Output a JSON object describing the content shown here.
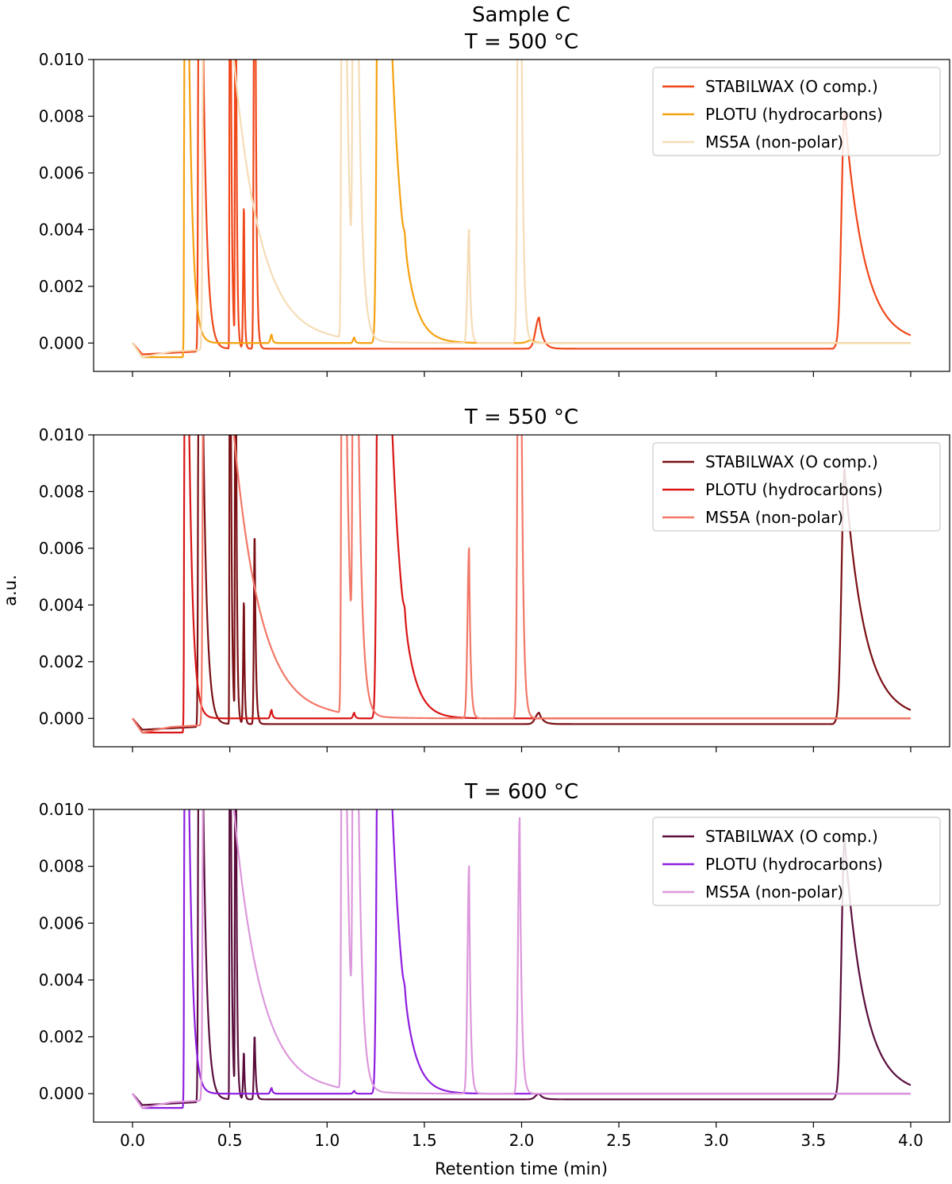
{
  "figure": {
    "title": "Sample C",
    "ylabel": "a.u.",
    "xlabel": "Retention time (min)"
  },
  "chart_data": [
    {
      "type": "line",
      "title": "T = 500 °C",
      "xlabel": "Retention time (min)",
      "ylabel": "a.u.",
      "xlim": [
        -0.2,
        4.2
      ],
      "ylim": [
        -0.001,
        0.01
      ],
      "xticks": [
        "0.0",
        "0.5",
        "1.0",
        "1.5",
        "2.0",
        "2.5",
        "3.0",
        "3.5",
        "4.0"
      ],
      "yticks": [
        "0.000",
        "0.002",
        "0.004",
        "0.006",
        "0.008",
        "0.010"
      ],
      "legend_position": "top-right",
      "grid": false,
      "series": [
        {
          "name": "STABILWAX (O comp.)",
          "color": "#f0471a",
          "baseline": [
            [
              0.0,
              0.0
            ],
            [
              0.05,
              -0.0004
            ],
            [
              0.33,
              -0.0003
            ],
            [
              0.5,
              -0.0002
            ],
            [
              0.6,
              -0.0002
            ],
            [
              0.67,
              -0.0002
            ],
            [
              1.0,
              -0.0002
            ],
            [
              1.5,
              -0.0002
            ],
            [
              2.05,
              -0.0002
            ],
            [
              2.1,
              -0.0002
            ],
            [
              2.5,
              -0.0002
            ],
            [
              3.0,
              -0.0002
            ],
            [
              3.6,
              -0.0002
            ],
            [
              3.65,
              0.0
            ],
            [
              4.0,
              0.0
            ]
          ],
          "peaks": [
            [
              0.343,
              0.03,
              0.004,
              0.02
            ],
            [
              0.5,
              0.03,
              0.0015,
              0.006
            ],
            [
              0.528,
              0.03,
              0.0015,
              0.005
            ],
            [
              0.573,
              0.0052,
              0.004,
              0.004
            ],
            [
              0.628,
              0.025,
              0.004,
              0.006
            ],
            [
              2.09,
              0.0011,
              0.018,
              0.02
            ],
            [
              3.66,
              0.0082,
              0.015,
              0.1
            ]
          ]
        },
        {
          "name": "PLOTU (hydrocarbons)",
          "color": "#f5a10f",
          "baseline": [
            [
              0.0,
              0.0
            ],
            [
              0.05,
              -0.0005
            ],
            [
              0.2,
              -0.0005
            ],
            [
              0.27,
              -0.0005
            ],
            [
              0.3,
              0.0
            ],
            [
              0.4,
              0.0
            ],
            [
              1.0,
              0.0
            ],
            [
              1.3,
              0.0
            ],
            [
              1.5,
              0.0
            ],
            [
              2.0,
              0.0
            ],
            [
              4.0,
              0.0
            ]
          ],
          "peaks": [
            [
              0.27,
              0.03,
              0.003,
              0.02
            ],
            [
              0.715,
              0.0003,
              0.006,
              0.006
            ],
            [
              1.14,
              0.0002,
              0.006,
              0.006
            ],
            [
              1.27,
              0.03,
              0.01,
              0.06
            ],
            [
              1.4,
              0.0004,
              0.006,
              0.006
            ],
            [
              2.05,
              0.0001,
              0.02,
              0.02
            ]
          ]
        },
        {
          "name": "MS5A (non-polar)",
          "color": "#f5dcb6",
          "baseline": [
            [
              0.0,
              0.0
            ],
            [
              0.05,
              -0.0005
            ],
            [
              0.2,
              -0.0003
            ],
            [
              1.0,
              0.0
            ],
            [
              2.0,
              0.0
            ],
            [
              4.0,
              0.0
            ]
          ],
          "peaks": [
            [
              0.37,
              0.03,
              0.006,
              0.14
            ],
            [
              1.08,
              0.03,
              0.005,
              0.02
            ],
            [
              1.14,
              0.03,
              0.006,
              0.02
            ],
            [
              1.73,
              0.004,
              0.008,
              0.008
            ],
            [
              1.99,
              0.03,
              0.008,
              0.01
            ]
          ]
        }
      ]
    },
    {
      "type": "line",
      "title": "T = 550 °C",
      "xlabel": "Retention time (min)",
      "ylabel": "a.u.",
      "xlim": [
        -0.2,
        4.2
      ],
      "ylim": [
        -0.001,
        0.01
      ],
      "xticks": [
        "0.0",
        "0.5",
        "1.0",
        "1.5",
        "2.0",
        "2.5",
        "3.0",
        "3.5",
        "4.0"
      ],
      "yticks": [
        "0.000",
        "0.002",
        "0.004",
        "0.006",
        "0.008",
        "0.010"
      ],
      "legend_position": "top-right",
      "grid": false,
      "series": [
        {
          "name": "STABILWAX (O comp.)",
          "color": "#7a0f14",
          "baseline": [
            [
              0.0,
              0.0
            ],
            [
              0.05,
              -0.0004
            ],
            [
              0.33,
              -0.0003
            ],
            [
              0.5,
              -0.0002
            ],
            [
              0.67,
              -0.0002
            ],
            [
              1.0,
              -0.0002
            ],
            [
              2.0,
              -0.0002
            ],
            [
              2.5,
              -0.0002
            ],
            [
              3.0,
              -0.0002
            ],
            [
              3.6,
              -0.0002
            ],
            [
              3.65,
              0.0
            ],
            [
              4.0,
              0.0
            ]
          ],
          "peaks": [
            [
              0.343,
              0.03,
              0.004,
              0.02
            ],
            [
              0.5,
              0.03,
              0.0015,
              0.006
            ],
            [
              0.528,
              0.03,
              0.0015,
              0.005
            ],
            [
              0.573,
              0.0045,
              0.004,
              0.004
            ],
            [
              0.628,
              0.0069,
              0.004,
              0.006
            ],
            [
              2.09,
              0.0004,
              0.018,
              0.02
            ],
            [
              3.66,
              0.0088,
              0.015,
              0.1
            ]
          ]
        },
        {
          "name": "PLOTU (hydrocarbons)",
          "color": "#d91515",
          "baseline": [
            [
              0.0,
              0.0
            ],
            [
              0.05,
              -0.0005
            ],
            [
              0.2,
              -0.0005
            ],
            [
              0.27,
              -0.0005
            ],
            [
              0.3,
              0.0
            ],
            [
              1.0,
              0.0
            ],
            [
              2.0,
              0.0
            ],
            [
              4.0,
              0.0
            ]
          ],
          "peaks": [
            [
              0.27,
              0.03,
              0.003,
              0.02
            ],
            [
              0.715,
              0.0003,
              0.006,
              0.006
            ],
            [
              1.14,
              0.0002,
              0.006,
              0.006
            ],
            [
              1.27,
              0.03,
              0.01,
              0.06
            ],
            [
              1.4,
              0.0004,
              0.006,
              0.006
            ]
          ]
        },
        {
          "name": "MS5A (non-polar)",
          "color": "#f27868",
          "baseline": [
            [
              0.0,
              0.0
            ],
            [
              0.05,
              -0.0005
            ],
            [
              0.2,
              -0.0003
            ],
            [
              1.0,
              0.0
            ],
            [
              2.0,
              0.0
            ],
            [
              4.0,
              0.0
            ]
          ],
          "peaks": [
            [
              0.37,
              0.03,
              0.006,
              0.14
            ],
            [
              1.08,
              0.03,
              0.005,
              0.02
            ],
            [
              1.14,
              0.03,
              0.006,
              0.02
            ],
            [
              1.73,
              0.006,
              0.008,
              0.008
            ],
            [
              1.99,
              0.03,
              0.008,
              0.01
            ]
          ]
        }
      ]
    },
    {
      "type": "line",
      "title": "T = 600 °C",
      "xlabel": "Retention time (min)",
      "ylabel": "a.u.",
      "xlim": [
        -0.2,
        4.2
      ],
      "ylim": [
        -0.001,
        0.01
      ],
      "xticks": [
        "0.0",
        "0.5",
        "1.0",
        "1.5",
        "2.0",
        "2.5",
        "3.0",
        "3.5",
        "4.0"
      ],
      "yticks": [
        "0.000",
        "0.002",
        "0.004",
        "0.006",
        "0.008",
        "0.010"
      ],
      "legend_position": "top-right",
      "grid": false,
      "series": [
        {
          "name": "STABILWAX (O comp.)",
          "color": "#5a0d3c",
          "baseline": [
            [
              0.0,
              0.0
            ],
            [
              0.05,
              -0.0004
            ],
            [
              0.33,
              -0.0003
            ],
            [
              0.5,
              -0.0002
            ],
            [
              0.67,
              -0.0002
            ],
            [
              1.0,
              -0.0002
            ],
            [
              2.0,
              -0.0002
            ],
            [
              2.5,
              -0.0002
            ],
            [
              3.0,
              -0.0002
            ],
            [
              3.6,
              -0.0002
            ],
            [
              3.65,
              0.0
            ],
            [
              4.0,
              0.0
            ]
          ],
          "peaks": [
            [
              0.343,
              0.03,
              0.004,
              0.02
            ],
            [
              0.5,
              0.03,
              0.0015,
              0.006
            ],
            [
              0.528,
              0.03,
              0.0015,
              0.005
            ],
            [
              0.573,
              0.0017,
              0.004,
              0.004
            ],
            [
              0.628,
              0.0023,
              0.004,
              0.006
            ],
            [
              2.09,
              0.0002,
              0.018,
              0.02
            ],
            [
              3.66,
              0.009,
              0.015,
              0.1
            ]
          ]
        },
        {
          "name": "PLOTU (hydrocarbons)",
          "color": "#8f1ee0",
          "baseline": [
            [
              0.0,
              0.0
            ],
            [
              0.05,
              -0.0005
            ],
            [
              0.2,
              -0.0005
            ],
            [
              0.27,
              -0.0005
            ],
            [
              0.3,
              0.0
            ],
            [
              1.0,
              0.0
            ],
            [
              2.0,
              0.0
            ],
            [
              4.0,
              0.0
            ]
          ],
          "peaks": [
            [
              0.27,
              0.03,
              0.003,
              0.02
            ],
            [
              0.715,
              0.0002,
              0.006,
              0.006
            ],
            [
              1.14,
              0.0001,
              0.006,
              0.006
            ],
            [
              1.27,
              0.03,
              0.01,
              0.06
            ],
            [
              1.4,
              0.0003,
              0.006,
              0.006
            ]
          ]
        },
        {
          "name": "MS5A (non-polar)",
          "color": "#dc98dc",
          "baseline": [
            [
              0.0,
              0.0
            ],
            [
              0.05,
              -0.0005
            ],
            [
              0.2,
              -0.0003
            ],
            [
              1.0,
              0.0
            ],
            [
              2.0,
              0.0
            ],
            [
              4.0,
              0.0
            ]
          ],
          "peaks": [
            [
              0.37,
              0.03,
              0.006,
              0.14
            ],
            [
              1.08,
              0.03,
              0.005,
              0.02
            ],
            [
              1.14,
              0.03,
              0.006,
              0.02
            ],
            [
              1.73,
              0.008,
              0.008,
              0.008
            ],
            [
              1.99,
              0.0097,
              0.008,
              0.01
            ]
          ]
        }
      ]
    }
  ]
}
